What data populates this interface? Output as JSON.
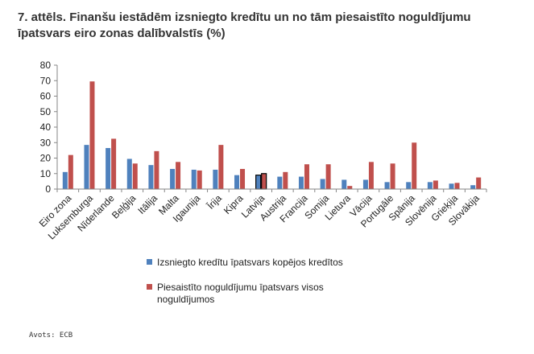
{
  "title": "7. attēls. Finanšu iestādēm izsniegto kredītu un no tām piesaistīto noguldījumu īpatsvars eiro zonas dalībvalstīs (%)",
  "source": "Avots: ECB",
  "colors": {
    "series1": "#4f81bd",
    "series2": "#c0504d",
    "axis": "#868686",
    "grid": "#c0c0c0"
  },
  "chart_data": {
    "type": "bar",
    "title": "7. attēls. Finanšu iestādēm izsniegto kredītu un no tām piesaistīto noguldījumu īpatsvars eiro zonas dalībvalstīs (%)",
    "xlabel": "",
    "ylabel": "",
    "ylim": [
      0,
      80
    ],
    "yticks": [
      0,
      10,
      20,
      30,
      40,
      50,
      60,
      70,
      80
    ],
    "grid": false,
    "legend_position": "bottom",
    "highlighted_category": "Latvija",
    "categories": [
      "Eiro zona",
      "Luksemburga",
      "Nīderlande",
      "Beļģija",
      "Itālija",
      "Malta",
      "Igaunija",
      "Īrija",
      "Kipra",
      "Latvija",
      "Austrija",
      "Francija",
      "Somija",
      "Lietuva",
      "Vācija",
      "Portugāle",
      "Spānija",
      "Slovēnija",
      "Grieķija",
      "Slovākija"
    ],
    "series": [
      {
        "name": "Izsniegto kredītu īpatsvars kopējos kredītos",
        "values": [
          11,
          28.5,
          26.5,
          19.5,
          15.5,
          13,
          12.5,
          12.5,
          9,
          9,
          8,
          8,
          6.5,
          6,
          6,
          4.5,
          4.5,
          4.5,
          3.5,
          2.5
        ]
      },
      {
        "name": "Piesaistīto noguldījumu īpatsvars visos noguldījumos",
        "values": [
          22,
          69.5,
          32.5,
          16.5,
          24.5,
          17.5,
          12,
          28.5,
          13,
          10,
          11,
          16,
          16,
          2,
          17.5,
          16.5,
          30,
          5.5,
          4,
          7.5
        ]
      }
    ]
  }
}
